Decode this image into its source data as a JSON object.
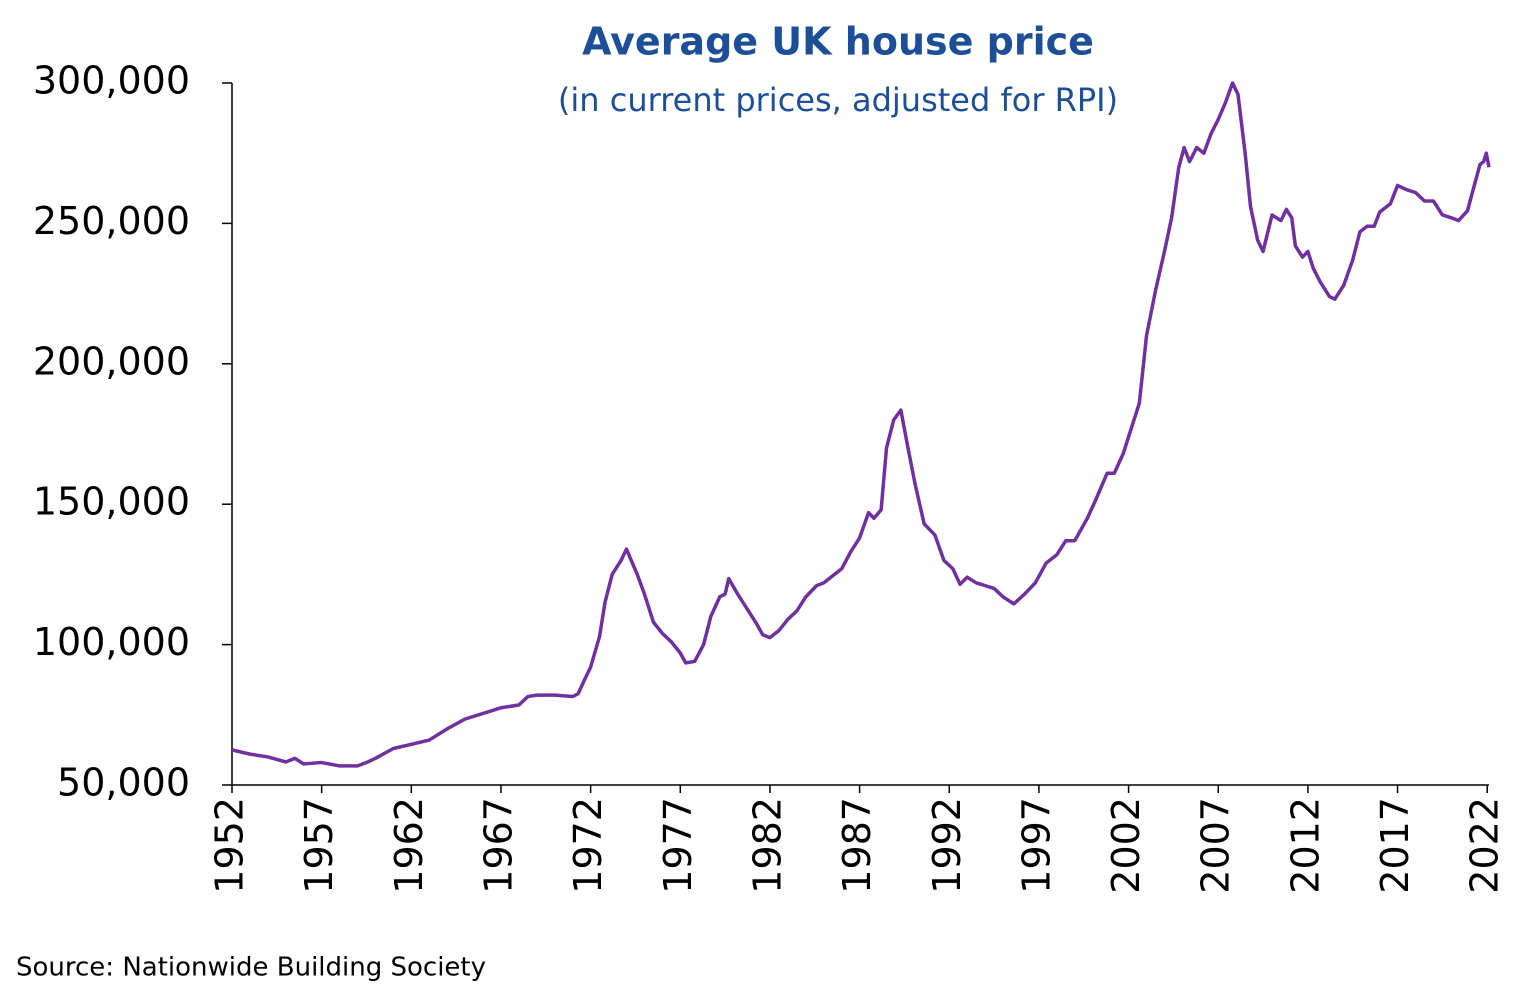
{
  "chart_data": {
    "type": "line",
    "title": "Average UK house price",
    "subtitle": "(in current prices, adjusted for RPI)",
    "source": "Source: Nationwide Building Society",
    "x": [
      1952,
      1953,
      1954,
      1955,
      1955.5,
      1956,
      1957,
      1958,
      1959,
      1959.5,
      1960,
      1961,
      1962,
      1963,
      1964,
      1965,
      1966,
      1967,
      1968,
      1968.5,
      1969,
      1970,
      1971,
      1971.3,
      1971.7,
      1972,
      1972.5,
      1972.8,
      1973.2,
      1973.7,
      1974,
      1974.6,
      1975,
      1975.5,
      1976,
      1976.5,
      1977,
      1977.3,
      1977.8,
      1978.3,
      1978.7,
      1979.2,
      1979.5,
      1979.7,
      1980.2,
      1980.8,
      1981.2,
      1981.6,
      1982,
      1982.5,
      1983,
      1983.5,
      1984,
      1984.6,
      1985,
      1985.6,
      1986,
      1986.5,
      1987,
      1987.5,
      1987.8,
      1988.2,
      1988.5,
      1988.9,
      1989.3,
      1989.7,
      1990.1,
      1990.6,
      1991.2,
      1991.7,
      1992.2,
      1992.6,
      1993,
      1993.5,
      1994,
      1994.5,
      1995,
      1995.6,
      1996.2,
      1996.8,
      1997.4,
      1998,
      1998.5,
      1999,
      1999.7,
      2000.2,
      2000.8,
      2001.2,
      2001.7,
      2002.2,
      2002.6,
      2003,
      2003.5,
      2004,
      2004.4,
      2004.8,
      2005.1,
      2005.4,
      2005.8,
      2006.2,
      2006.6,
      2007,
      2007.4,
      2007.8,
      2008.1,
      2008.5,
      2008.8,
      2009.2,
      2009.5,
      2010,
      2010.5,
      2010.8,
      2011.1,
      2011.3,
      2011.7,
      2012,
      2012.3,
      2012.7,
      2013.2,
      2013.5,
      2014,
      2014.5,
      2014.9,
      2015.3,
      2015.7,
      2016,
      2016.6,
      2017,
      2017.5,
      2018,
      2018.5,
      2019,
      2019.5,
      2020,
      2020.4,
      2020.9,
      2021.3,
      2021.6,
      2021.8,
      2021.95,
      2022.1
    ],
    "series": [
      {
        "name": "Average UK house price",
        "color": "#7030a0",
        "values": [
          62500,
          61000,
          60000,
          58200,
          59500,
          57500,
          58000,
          56800,
          56800,
          58000,
          59500,
          63000,
          64500,
          66000,
          70000,
          73500,
          75500,
          77500,
          78500,
          81500,
          82000,
          82000,
          81500,
          82500,
          88000,
          92000,
          103000,
          115000,
          125000,
          130000,
          134000,
          125000,
          118000,
          108000,
          104000,
          101000,
          97000,
          93500,
          94000,
          100000,
          110000,
          117000,
          118000,
          123500,
          118000,
          112000,
          108000,
          103500,
          102500,
          105000,
          109000,
          112000,
          117000,
          121000,
          122000,
          125000,
          127000,
          133000,
          138000,
          147000,
          145000,
          148000,
          170000,
          180000,
          183500,
          170000,
          157000,
          143000,
          139000,
          130000,
          127000,
          121500,
          124000,
          122000,
          121000,
          120000,
          117000,
          114500,
          118000,
          122000,
          129000,
          132000,
          137000,
          137000,
          145000,
          152000,
          161000,
          161000,
          168000,
          178000,
          186000,
          210000,
          226000,
          240000,
          252000,
          270000,
          277000,
          272000,
          277000,
          275000,
          282000,
          287000,
          293000,
          300000,
          296000,
          275000,
          256000,
          244000,
          240000,
          253000,
          251000,
          255000,
          252000,
          242000,
          238000,
          240000,
          234000,
          229000,
          224000,
          223000,
          228000,
          237000,
          247000,
          249000,
          249000,
          254000,
          257000,
          263500,
          262000,
          261000,
          258000,
          258000,
          253000,
          252000,
          251000,
          254500,
          264000,
          271000,
          272000,
          275000,
          270000
        ]
      }
    ],
    "xlim": [
      1952,
      2022.1
    ],
    "xticks": [
      1952,
      1957,
      1962,
      1967,
      1972,
      1977,
      1982,
      1987,
      1992,
      1997,
      2002,
      2007,
      2012,
      2017,
      2022
    ],
    "ylim": [
      50000,
      300000
    ],
    "yticks": [
      {
        "value": 50000,
        "label": "50,000"
      },
      {
        "value": 100000,
        "label": "100,000"
      },
      {
        "value": 150000,
        "label": "150,000"
      },
      {
        "value": 200000,
        "label": "200,000"
      },
      {
        "value": 250000,
        "label": "250,000"
      },
      {
        "value": 300000,
        "label": "300,000"
      }
    ]
  }
}
